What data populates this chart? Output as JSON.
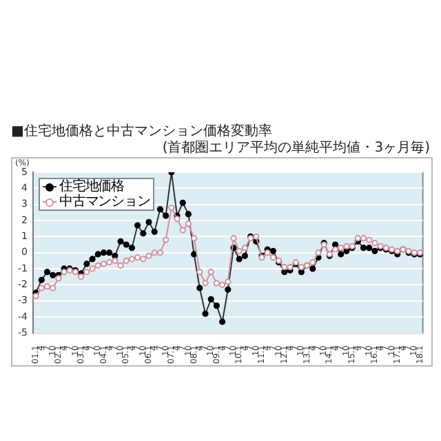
{
  "chart_data": {
    "type": "line",
    "title": "■住宅地価格と中古マンション価格変動率",
    "subtitle": "(首都圏エリア平均の単純平均値・3ヶ月毎)",
    "ylabel": "(%)",
    "categories": [
      "01.1",
      "4",
      "7",
      "10",
      "02.1",
      "4",
      "7",
      "10",
      "03.1",
      "4",
      "7",
      "10",
      "04.1",
      "4",
      "7",
      "10",
      "05.1",
      "4",
      "7",
      "10",
      "06.1",
      "4",
      "7",
      "10",
      "07.1",
      "4",
      "7",
      "10",
      "08.1",
      "4",
      "7",
      "10",
      "09.1",
      "4",
      "7",
      "10",
      "10.1",
      "4",
      "7",
      "10",
      "11.1",
      "4",
      "7",
      "10",
      "12.1",
      "4",
      "7",
      "10",
      "13.1",
      "4",
      "7",
      "10",
      "14.1",
      "4",
      "7",
      "10",
      "15.1",
      "4",
      "7",
      "10",
      "16.1",
      "4",
      "7",
      "10",
      "17.1",
      "4",
      "7",
      "10",
      "18.1"
    ],
    "series": [
      {
        "name": "住宅地価格",
        "color": "#000000",
        "values": [
          -2.5,
          -1.7,
          -1.2,
          -1.4,
          -1.4,
          -1.0,
          -1.0,
          -1.1,
          -1.3,
          -0.7,
          -0.4,
          -0.1,
          0.0,
          0.0,
          -0.2,
          0.7,
          0.5,
          0.3,
          1.7,
          1.2,
          1.9,
          1.3,
          2.7,
          2.3,
          5.0,
          2.3,
          3.1,
          2.4,
          -0.1,
          -2.2,
          -3.8,
          -2.9,
          -3.3,
          -4.3,
          -2.3,
          0.3,
          -0.4,
          -0.2,
          1.0,
          0.7,
          -0.2,
          0.2,
          0.1,
          -0.6,
          -1.2,
          -1.1,
          -0.7,
          -1.2,
          -0.8,
          -1.0,
          -0.3,
          0.6,
          -0.2,
          0.5,
          -0.1,
          0.1,
          0.3,
          0.7,
          0.3,
          0.3,
          0.1,
          0.3,
          0.2,
          0.1,
          -0.1,
          0.2,
          0.0,
          -0.1,
          -0.1
        ]
      },
      {
        "name": "中古マンション",
        "color": "#d4919c",
        "values": [
          -2.7,
          -2.2,
          -2.1,
          -2.2,
          -1.6,
          -1.2,
          -1.1,
          -1.2,
          -1.5,
          -1.2,
          -1.0,
          -0.8,
          -0.7,
          -0.6,
          -0.5,
          -0.8,
          -0.5,
          -0.4,
          -0.3,
          -0.4,
          -0.2,
          0.0,
          0.0,
          0.8,
          2.8,
          2.1,
          1.4,
          1.8,
          0.9,
          -1.2,
          -1.9,
          -1.2,
          -1.9,
          -2.0,
          -1.8,
          0.9,
          0.1,
          0.3,
          0.9,
          1.0,
          -0.3,
          0.0,
          -0.3,
          -0.5,
          -0.9,
          -0.9,
          -0.6,
          -0.9,
          -0.8,
          -0.6,
          0.0,
          0.5,
          -0.1,
          0.2,
          0.3,
          0.4,
          0.4,
          0.9,
          0.9,
          0.8,
          0.6,
          0.4,
          0.3,
          0.2,
          0.1,
          0.2,
          0.1,
          0.0,
          0.0
        ]
      }
    ],
    "ylim": [
      -5,
      5
    ],
    "yticks": [
      -5,
      -4,
      -3,
      -2,
      -1,
      0,
      1,
      2,
      3,
      4,
      5
    ],
    "grid": "y",
    "legend": "top left",
    "marker": "circle",
    "line_style": "solid"
  }
}
